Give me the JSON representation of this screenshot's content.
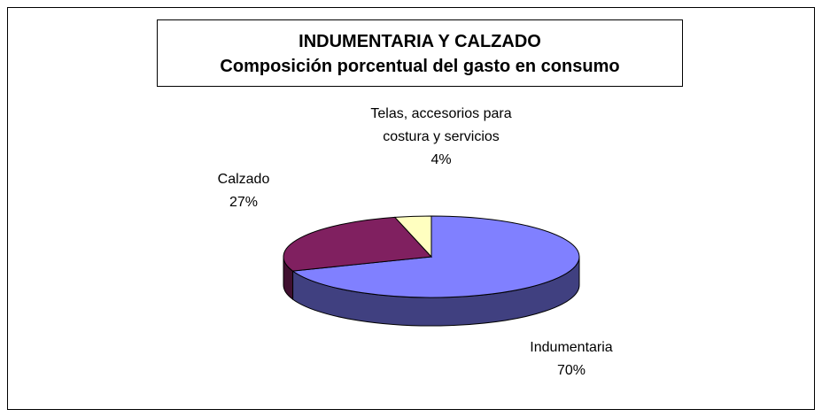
{
  "chart_data": {
    "type": "pie",
    "three_d": true,
    "title": "INDUMENTARIA Y CALZADO",
    "subtitle": "Composición porcentual del gasto en consumo",
    "categories": [
      "Indumentaria",
      "Calzado",
      "Telas, accesorios para costura y servicios"
    ],
    "values": [
      70,
      27,
      4
    ],
    "value_labels": [
      "70%",
      "27%",
      "4%"
    ],
    "colors": [
      "#8080ff",
      "#802060",
      "#ffffc0"
    ],
    "side_colors": [
      "#404080",
      "#401030",
      "#808060"
    ]
  }
}
